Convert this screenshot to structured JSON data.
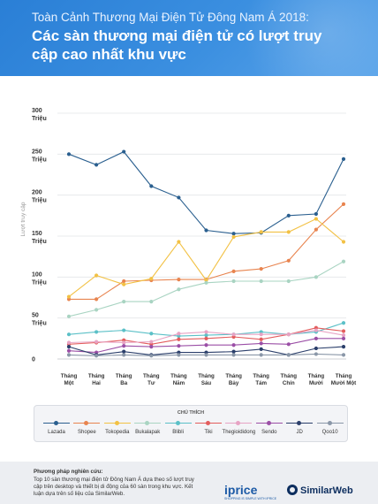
{
  "header": {
    "subtitle": "Toàn Cảnh Thương Mại Điện Tử Đông Nam Á 2018:",
    "title": "Các sàn thương mại điện tử có lượt truy cập cao nhất khu vực"
  },
  "legend": {
    "title": "CHÚ THÍCH"
  },
  "footer": {
    "method_title": "Phương pháp nghiên cứu:",
    "method_text": "Top 10 sàn thương mại điện tử Đông Nam Á dựa theo số lượt truy cập trên desktop và thiết bị di động của 60 sàn trong khu vực. Kết luận dựa trên số liệu của SimilarWeb.",
    "brand1": "iprice",
    "brand1_tagline": "SHOPPING IS SIMPLE WITH IPRICE",
    "brand2": "SimilarWeb"
  },
  "chart_data": {
    "type": "line",
    "ylabel": "Lượt truy cập",
    "ylim": [
      0,
      300
    ],
    "yticks": [
      {
        "value": 0,
        "label": [
          "0"
        ]
      },
      {
        "value": 50,
        "label": [
          "50",
          "Triệu"
        ]
      },
      {
        "value": 100,
        "label": [
          "100",
          "Triệu"
        ]
      },
      {
        "value": 150,
        "label": [
          "150",
          "Triệu"
        ]
      },
      {
        "value": 200,
        "label": [
          "200",
          "Triệu"
        ]
      },
      {
        "value": 250,
        "label": [
          "250",
          "Triệu"
        ]
      },
      {
        "value": 300,
        "label": [
          "300",
          "Triệu"
        ]
      }
    ],
    "categories": [
      [
        "Tháng",
        "Một"
      ],
      [
        "Tháng",
        "Hai"
      ],
      [
        "Tháng",
        "Ba"
      ],
      [
        "Tháng",
        "Tư"
      ],
      [
        "Tháng",
        "Năm"
      ],
      [
        "Tháng",
        "Sáu"
      ],
      [
        "Tháng",
        "Bảy"
      ],
      [
        "Tháng",
        "Tám"
      ],
      [
        "Tháng",
        "Chín"
      ],
      [
        "Tháng",
        "Mười"
      ],
      [
        "Tháng",
        "Mười Một"
      ]
    ],
    "grid": true,
    "legend_position": "bottom",
    "series": [
      {
        "name": "Lazada",
        "color": "#2a5f8f",
        "values": [
          250,
          237,
          253,
          211,
          197,
          157,
          153,
          154,
          175,
          177,
          244
        ]
      },
      {
        "name": "Shopee",
        "color": "#e8844f",
        "values": [
          73,
          73,
          95,
          96,
          97,
          97,
          107,
          110,
          120,
          158,
          189
        ]
      },
      {
        "name": "Tokopedia",
        "color": "#f2c144",
        "values": [
          76,
          102,
          91,
          98,
          143,
          96,
          149,
          155,
          155,
          171,
          143
        ]
      },
      {
        "name": "Bukalapak",
        "color": "#a9d4c2",
        "values": [
          52,
          60,
          70,
          70,
          85,
          93,
          95,
          95,
          95,
          100,
          119
        ]
      },
      {
        "name": "Blibli",
        "color": "#5bc0c7",
        "values": [
          30,
          33,
          35,
          31,
          28,
          29,
          30,
          33,
          30,
          33,
          44
        ]
      },
      {
        "name": "Tiki",
        "color": "#e35d5d",
        "values": [
          18,
          20,
          23,
          18,
          24,
          25,
          27,
          24,
          30,
          38,
          34
        ]
      },
      {
        "name": "Thegioididong",
        "color": "#e7a3c4",
        "values": [
          20,
          21,
          20,
          21,
          31,
          33,
          30,
          30,
          30,
          35,
          29
        ]
      },
      {
        "name": "Sendo",
        "color": "#9b4fa6",
        "values": [
          10,
          8,
          16,
          15,
          16,
          17,
          17,
          19,
          18,
          25,
          25
        ]
      },
      {
        "name": "JD",
        "color": "#2b3f6b",
        "values": [
          15,
          5,
          9,
          5,
          8,
          8,
          9,
          12,
          5,
          13,
          15
        ]
      },
      {
        "name": "Qoo10",
        "color": "#8a97a8",
        "values": [
          5,
          4,
          5,
          4,
          5,
          5,
          5,
          5,
          5,
          6,
          5
        ]
      }
    ]
  }
}
